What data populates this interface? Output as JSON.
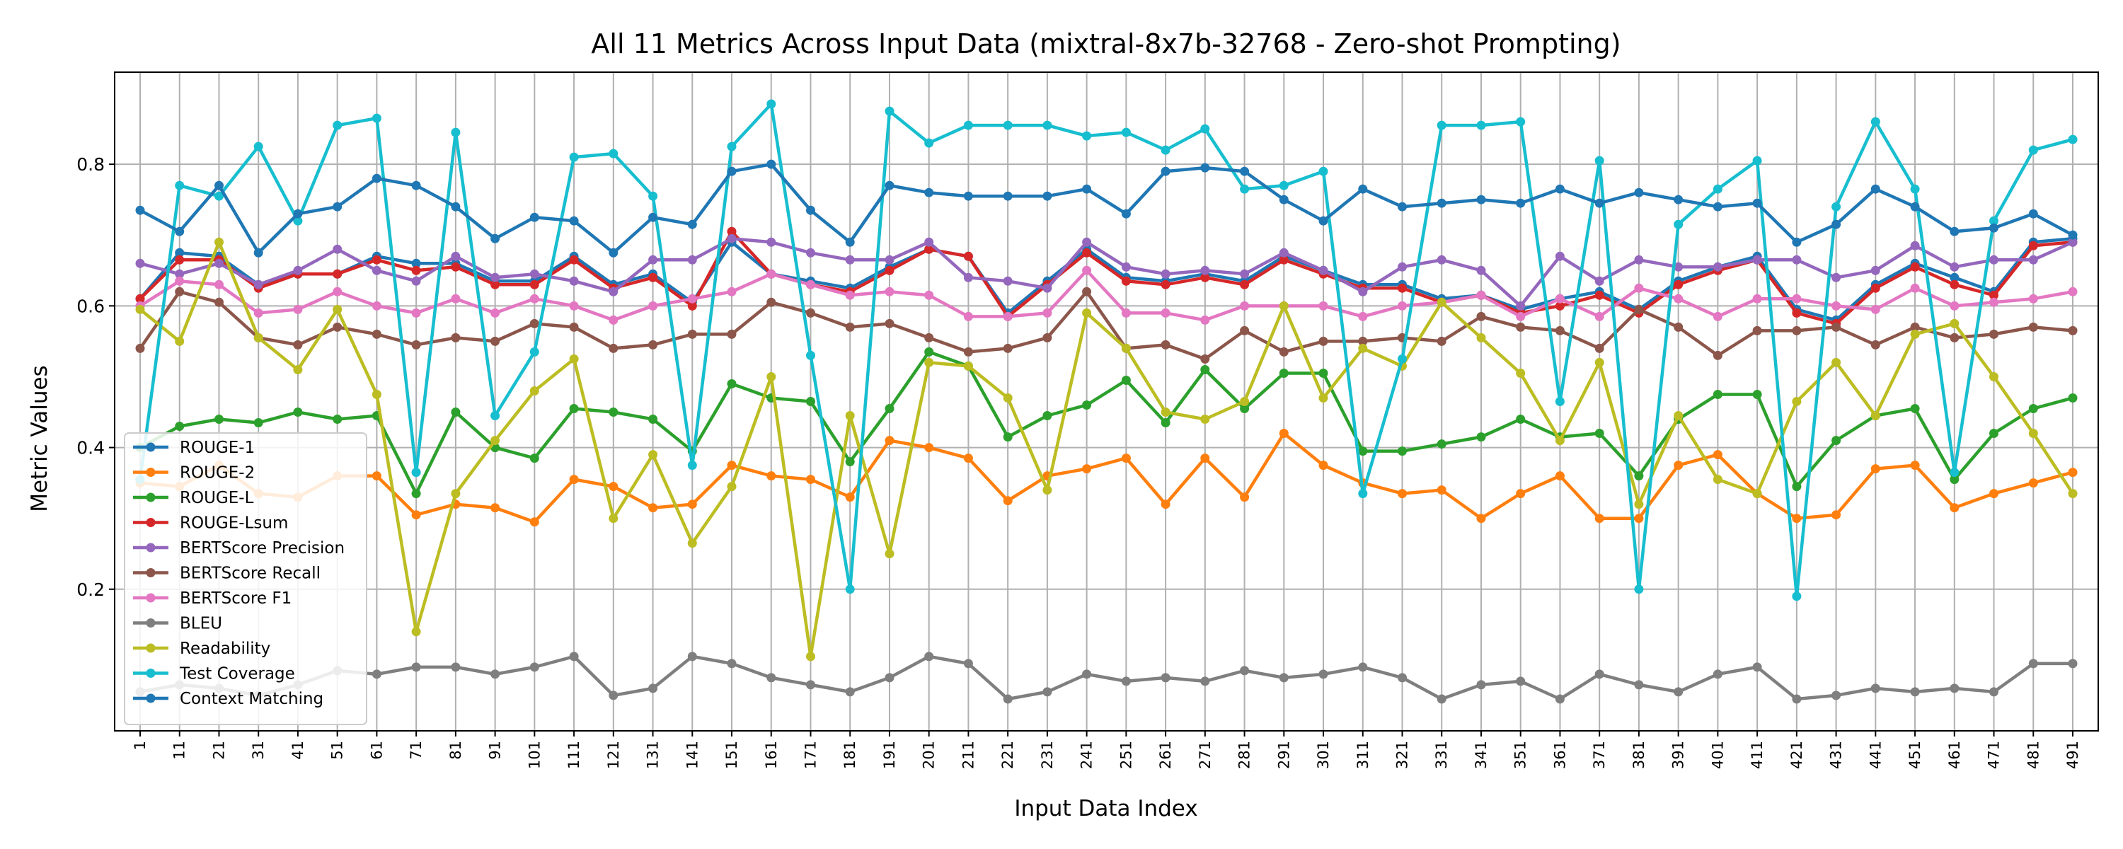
{
  "chart_data": {
    "type": "line",
    "title": "All 11 Metrics Across Input Data (mixtral-8x7b-32768 - Zero-shot Prompting)",
    "xlabel": "Input Data Index",
    "ylabel": "Metric Values",
    "ylim": [
      0.0,
      0.93
    ],
    "yticks": [
      0.2,
      0.4,
      0.6,
      0.8
    ],
    "grid": true,
    "legend_position": "lower-left",
    "x": [
      1,
      11,
      21,
      31,
      41,
      51,
      61,
      71,
      81,
      91,
      101,
      111,
      121,
      131,
      141,
      151,
      161,
      171,
      181,
      191,
      201,
      211,
      221,
      231,
      241,
      251,
      261,
      271,
      281,
      291,
      301,
      311,
      321,
      331,
      341,
      351,
      361,
      371,
      381,
      391,
      401,
      411,
      421,
      431,
      441,
      451,
      461,
      471,
      481,
      491
    ],
    "series": [
      {
        "name": "ROUGE-1",
        "color": "#1f77b4",
        "values": [
          0.61,
          0.675,
          0.67,
          0.63,
          0.645,
          0.645,
          0.67,
          0.66,
          0.66,
          0.635,
          0.635,
          0.67,
          0.63,
          0.645,
          0.605,
          0.69,
          0.645,
          0.635,
          0.625,
          0.655,
          0.68,
          0.67,
          0.59,
          0.635,
          0.68,
          0.64,
          0.635,
          0.645,
          0.635,
          0.67,
          0.65,
          0.63,
          0.63,
          0.61,
          0.615,
          0.595,
          0.61,
          0.62,
          0.595,
          0.635,
          0.655,
          0.67,
          0.595,
          0.58,
          0.63,
          0.66,
          0.64,
          0.62,
          0.69,
          0.695
        ]
      },
      {
        "name": "ROUGE-2",
        "color": "#ff7f0e",
        "values": [
          0.35,
          0.345,
          0.375,
          0.335,
          0.33,
          0.36,
          0.36,
          0.305,
          0.32,
          0.315,
          0.295,
          0.355,
          0.345,
          0.315,
          0.32,
          0.375,
          0.36,
          0.355,
          0.33,
          0.41,
          0.4,
          0.385,
          0.325,
          0.36,
          0.37,
          0.385,
          0.32,
          0.385,
          0.33,
          0.42,
          0.375,
          0.35,
          0.335,
          0.34,
          0.3,
          0.335,
          0.36,
          0.3,
          0.3,
          0.375,
          0.39,
          0.335,
          0.3,
          0.305,
          0.37,
          0.375,
          0.315,
          0.335,
          0.35,
          0.365
        ]
      },
      {
        "name": "ROUGE-L",
        "color": "#2ca02c",
        "values": [
          0.4,
          0.43,
          0.44,
          0.435,
          0.45,
          0.44,
          0.445,
          0.335,
          0.45,
          0.4,
          0.385,
          0.455,
          0.45,
          0.44,
          0.395,
          0.49,
          0.47,
          0.465,
          0.38,
          0.455,
          0.535,
          0.515,
          0.415,
          0.445,
          0.46,
          0.495,
          0.435,
          0.51,
          0.455,
          0.505,
          0.505,
          0.395,
          0.395,
          0.405,
          0.415,
          0.44,
          0.415,
          0.42,
          0.36,
          0.44,
          0.475,
          0.475,
          0.345,
          0.41,
          0.445,
          0.455,
          0.355,
          0.42,
          0.455,
          0.47
        ]
      },
      {
        "name": "ROUGE-Lsum",
        "color": "#d62728",
        "values": [
          0.61,
          0.665,
          0.665,
          0.625,
          0.645,
          0.645,
          0.665,
          0.65,
          0.655,
          0.63,
          0.63,
          0.665,
          0.625,
          0.64,
          0.6,
          0.705,
          0.645,
          0.63,
          0.62,
          0.65,
          0.68,
          0.67,
          0.585,
          0.63,
          0.675,
          0.635,
          0.63,
          0.64,
          0.63,
          0.665,
          0.645,
          0.625,
          0.625,
          0.605,
          0.615,
          0.59,
          0.6,
          0.615,
          0.59,
          0.63,
          0.65,
          0.665,
          0.59,
          0.575,
          0.625,
          0.655,
          0.63,
          0.615,
          0.685,
          0.69
        ]
      },
      {
        "name": "BERTScore Precision",
        "color": "#9467bd",
        "values": [
          0.66,
          0.645,
          0.66,
          0.63,
          0.65,
          0.68,
          0.65,
          0.635,
          0.67,
          0.64,
          0.645,
          0.635,
          0.62,
          0.665,
          0.665,
          0.695,
          0.69,
          0.675,
          0.665,
          0.665,
          0.69,
          0.64,
          0.635,
          0.625,
          0.69,
          0.655,
          0.645,
          0.65,
          0.645,
          0.675,
          0.65,
          0.62,
          0.655,
          0.665,
          0.65,
          0.6,
          0.67,
          0.635,
          0.665,
          0.655,
          0.655,
          0.665,
          0.665,
          0.64,
          0.65,
          0.685,
          0.655,
          0.665,
          0.665,
          0.69
        ]
      },
      {
        "name": "BERTScore Recall",
        "color": "#8c564b",
        "values": [
          0.54,
          0.62,
          0.605,
          0.555,
          0.545,
          0.57,
          0.56,
          0.545,
          0.555,
          0.55,
          0.575,
          0.57,
          0.54,
          0.545,
          0.56,
          0.56,
          0.605,
          0.59,
          0.57,
          0.575,
          0.555,
          0.535,
          0.54,
          0.555,
          0.62,
          0.54,
          0.545,
          0.525,
          0.565,
          0.535,
          0.55,
          0.55,
          0.555,
          0.55,
          0.585,
          0.57,
          0.565,
          0.54,
          0.595,
          0.57,
          0.53,
          0.565,
          0.565,
          0.57,
          0.545,
          0.57,
          0.555,
          0.56,
          0.57,
          0.565
        ]
      },
      {
        "name": "BERTScore F1",
        "color": "#e377c2",
        "values": [
          0.6,
          0.635,
          0.63,
          0.59,
          0.595,
          0.62,
          0.6,
          0.59,
          0.61,
          0.59,
          0.61,
          0.6,
          0.58,
          0.6,
          0.61,
          0.62,
          0.645,
          0.63,
          0.615,
          0.62,
          0.615,
          0.585,
          0.585,
          0.59,
          0.65,
          0.59,
          0.59,
          0.58,
          0.6,
          0.6,
          0.6,
          0.585,
          0.6,
          0.605,
          0.615,
          0.585,
          0.61,
          0.585,
          0.625,
          0.61,
          0.585,
          0.61,
          0.61,
          0.6,
          0.595,
          0.625,
          0.6,
          0.605,
          0.61,
          0.62
        ]
      },
      {
        "name": "BLEU",
        "color": "#7f7f7f",
        "values": [
          0.055,
          0.065,
          0.06,
          0.05,
          0.065,
          0.085,
          0.08,
          0.09,
          0.09,
          0.08,
          0.09,
          0.105,
          0.05,
          0.06,
          0.105,
          0.095,
          0.075,
          0.065,
          0.055,
          0.075,
          0.105,
          0.095,
          0.045,
          0.055,
          0.08,
          0.07,
          0.075,
          0.07,
          0.085,
          0.075,
          0.08,
          0.09,
          0.075,
          0.045,
          0.065,
          0.07,
          0.045,
          0.08,
          0.065,
          0.055,
          0.08,
          0.09,
          0.045,
          0.05,
          0.06,
          0.055,
          0.06,
          0.055,
          0.095,
          0.095
        ]
      },
      {
        "name": "Readability",
        "color": "#bcbd22",
        "values": [
          0.595,
          0.55,
          0.69,
          0.555,
          0.51,
          0.595,
          0.475,
          0.14,
          0.335,
          0.41,
          0.48,
          0.525,
          0.3,
          0.39,
          0.265,
          0.345,
          0.5,
          0.105,
          0.445,
          0.25,
          0.52,
          0.515,
          0.47,
          0.34,
          0.59,
          0.54,
          0.45,
          0.44,
          0.465,
          0.6,
          0.47,
          0.54,
          0.515,
          0.605,
          0.555,
          0.505,
          0.41,
          0.52,
          0.32,
          0.445,
          0.355,
          0.335,
          0.465,
          0.52,
          0.445,
          0.56,
          0.575,
          0.5,
          0.42,
          0.335
        ]
      },
      {
        "name": "Test Coverage",
        "color": "#17becf",
        "values": [
          0.355,
          0.77,
          0.755,
          0.825,
          0.72,
          0.855,
          0.865,
          0.365,
          0.845,
          0.445,
          0.535,
          0.81,
          0.815,
          0.755,
          0.375,
          0.825,
          0.885,
          0.53,
          0.2,
          0.875,
          0.83,
          0.855,
          0.855,
          0.855,
          0.84,
          0.845,
          0.82,
          0.85,
          0.765,
          0.77,
          0.79,
          0.335,
          0.525,
          0.855,
          0.855,
          0.86,
          0.465,
          0.805,
          0.2,
          0.715,
          0.765,
          0.805,
          0.19,
          0.74,
          0.86,
          0.765,
          0.365,
          0.72,
          0.82,
          0.835
        ]
      },
      {
        "name": "Context Matching",
        "color": "#1f77b4",
        "values": [
          0.735,
          0.705,
          0.77,
          0.675,
          0.73,
          0.74,
          0.78,
          0.77,
          0.74,
          0.695,
          0.725,
          0.72,
          0.675,
          0.725,
          0.715,
          0.79,
          0.8,
          0.735,
          0.69,
          0.77,
          0.76,
          0.755,
          0.755,
          0.755,
          0.765,
          0.73,
          0.79,
          0.795,
          0.79,
          0.75,
          0.72,
          0.765,
          0.74,
          0.745,
          0.75,
          0.745,
          0.765,
          0.745,
          0.76,
          0.75,
          0.74,
          0.745,
          0.69,
          0.715,
          0.765,
          0.74,
          0.705,
          0.71,
          0.73,
          0.7
        ]
      }
    ]
  }
}
